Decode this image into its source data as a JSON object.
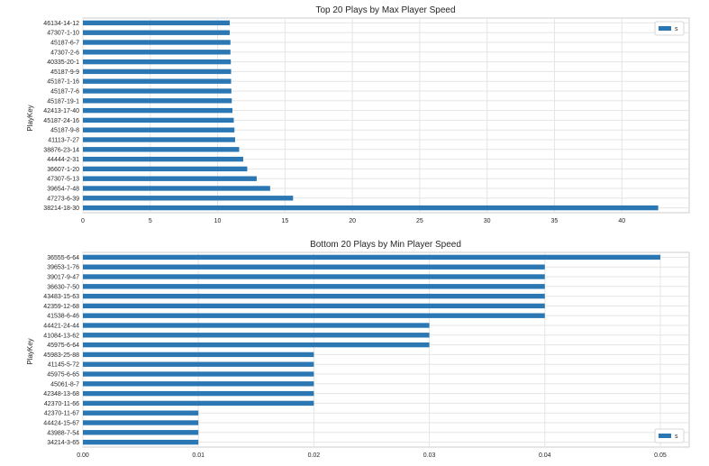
{
  "chart_data": [
    {
      "type": "bar",
      "orientation": "horizontal",
      "title": "Top 20 Plays by Max Player Speed",
      "ylabel": "PlayKey",
      "xlabel": "",
      "xlim": [
        0,
        45
      ],
      "xticks": [
        0,
        5,
        10,
        15,
        20,
        25,
        30,
        35,
        40
      ],
      "grid": true,
      "legend": "top-right",
      "series": [
        {
          "name": "s",
          "color": "#2a77b4"
        }
      ],
      "categories": [
        "46134-14-12",
        "47307-1-10",
        "45187-6-7",
        "47307-2-6",
        "40335-20-1",
        "45187-9-9",
        "45187-1-16",
        "45187-7-6",
        "45187-19-1",
        "42413-17-40",
        "45187-24-16",
        "45187-9-8",
        "41113-7-27",
        "38876-23-14",
        "44444-2-31",
        "36607-1-20",
        "47307-5-13",
        "39654-7-48",
        "47273-6-39",
        "38214-18-30"
      ],
      "values": [
        10.9,
        10.9,
        10.95,
        10.95,
        10.98,
        11.0,
        11.0,
        11.02,
        11.05,
        11.1,
        11.2,
        11.25,
        11.3,
        11.6,
        11.9,
        12.2,
        12.9,
        13.9,
        15.6,
        42.7
      ]
    },
    {
      "type": "bar",
      "orientation": "horizontal",
      "title": "Bottom 20 Plays by Min Player Speed",
      "ylabel": "PlayKey",
      "xlabel": "",
      "xlim": [
        0,
        0.0525
      ],
      "xticks": [
        "0.00",
        "0.01",
        "0.02",
        "0.03",
        "0.04",
        "0.05"
      ],
      "xtick_values": [
        0,
        0.01,
        0.02,
        0.03,
        0.04,
        0.05
      ],
      "grid": true,
      "legend": "bottom-right",
      "series": [
        {
          "name": "s",
          "color": "#2a77b4"
        }
      ],
      "categories": [
        "36555-6-64",
        "39653-1-76",
        "39017-9-47",
        "36630-7-50",
        "43483-15-63",
        "42359-12-68",
        "41538-6-46",
        "44421-24-44",
        "41084-13-62",
        "45975-6-64",
        "45983-25-88",
        "41145-5-72",
        "45975-6-65",
        "45061-8-7",
        "42348-13-68",
        "42370-11-66",
        "42370-11-67",
        "44424-15-67",
        "43988-7-54",
        "34214-3-65"
      ],
      "values": [
        0.05,
        0.04,
        0.04,
        0.04,
        0.04,
        0.04,
        0.04,
        0.03,
        0.03,
        0.03,
        0.02,
        0.02,
        0.02,
        0.02,
        0.02,
        0.02,
        0.01,
        0.01,
        0.01,
        0.01
      ]
    }
  ]
}
